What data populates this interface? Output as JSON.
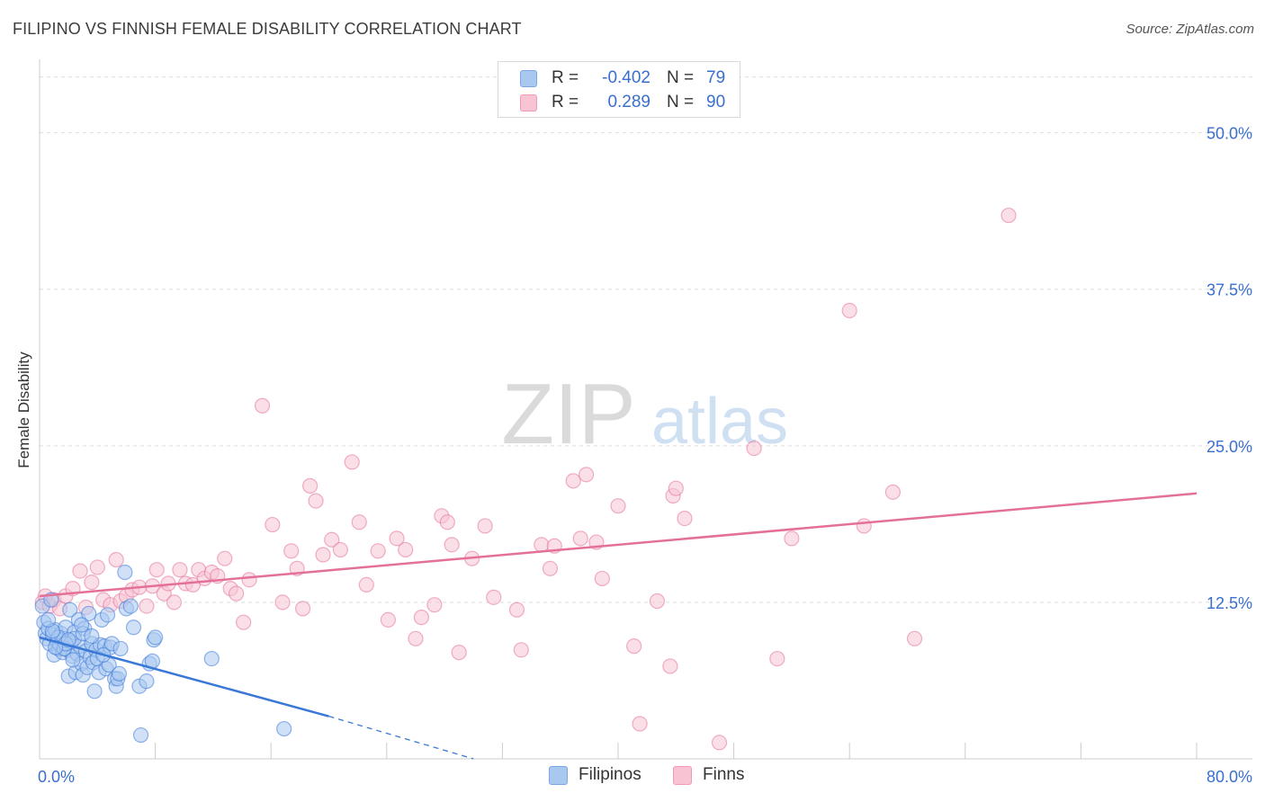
{
  "title": "FILIPINO VS FINNISH FEMALE DISABILITY CORRELATION CHART",
  "source": "Source: ZipAtlas.com",
  "watermark": {
    "zip": "ZIP",
    "atlas": "atlas"
  },
  "legend": [
    {
      "swatch_color": "#a9c8f0",
      "swatch_border": "#7aa8e6",
      "r_label": "R =",
      "r_value": "-0.402",
      "n_label": "N =",
      "n_value": "79"
    },
    {
      "swatch_color": "#f8c4d4",
      "swatch_border": "#ef9ab6",
      "r_label": "R =",
      "r_value": "0.289",
      "n_label": "N =",
      "n_value": "90"
    }
  ],
  "bottom_legend": [
    {
      "label": "Filipinos",
      "color": "#a9c8f0",
      "border": "#7aa8e6"
    },
    {
      "label": "Finns",
      "color": "#f8c4d4",
      "border": "#ef9ab6"
    }
  ],
  "chart_data": {
    "type": "scatter",
    "title": "FILIPINO VS FINNISH FEMALE DISABILITY CORRELATION CHART",
    "xlabel": "",
    "ylabel": "Female Disability",
    "xlim": [
      0,
      80
    ],
    "ylim": [
      0,
      50
    ],
    "x_tick_labels": [
      "0.0%",
      "80.0%"
    ],
    "y_ticks": [
      12.5,
      25.0,
      37.5,
      50.0
    ],
    "y_tick_labels": [
      "12.5%",
      "25.0%",
      "37.5%",
      "50.0%"
    ],
    "grid": "horizontal dashed",
    "legend_position": "top-center",
    "series": [
      {
        "name": "Filipinos",
        "color": "#3a78d8",
        "fill": "#a9c8f0",
        "r": -0.402,
        "n": 79,
        "trend": {
          "x": [
            0.0,
            20.0
          ],
          "y": [
            9.7,
            3.4
          ],
          "dashed_to": [
            30.0,
            0.0
          ]
        },
        "points": [
          [
            0.2,
            12.2
          ],
          [
            0.3,
            10.9
          ],
          [
            0.4,
            10.0
          ],
          [
            0.5,
            9.6
          ],
          [
            0.6,
            10.4
          ],
          [
            0.7,
            9.2
          ],
          [
            0.8,
            12.7
          ],
          [
            0.9,
            9.9
          ],
          [
            1.0,
            8.3
          ],
          [
            1.1,
            10.3
          ],
          [
            1.2,
            9.4
          ],
          [
            1.3,
            8.8
          ],
          [
            1.4,
            9.1
          ],
          [
            1.5,
            10.0
          ],
          [
            1.6,
            8.5
          ],
          [
            1.7,
            9.6
          ],
          [
            1.8,
            10.5
          ],
          [
            1.9,
            8.7
          ],
          [
            2.0,
            6.6
          ],
          [
            2.1,
            11.9
          ],
          [
            2.2,
            9.3
          ],
          [
            2.3,
            8.2
          ],
          [
            2.4,
            10.1
          ],
          [
            2.5,
            6.9
          ],
          [
            2.6,
            8.4
          ],
          [
            2.7,
            11.1
          ],
          [
            2.8,
            9.0
          ],
          [
            2.9,
            7.6
          ],
          [
            3.0,
            6.7
          ],
          [
            3.1,
            10.4
          ],
          [
            3.2,
            8.6
          ],
          [
            3.3,
            7.3
          ],
          [
            3.4,
            11.6
          ],
          [
            3.5,
            8.1
          ],
          [
            3.6,
            9.2
          ],
          [
            3.7,
            7.7
          ],
          [
            3.8,
            5.4
          ],
          [
            3.9,
            8.7
          ],
          [
            4.0,
            8.0
          ],
          [
            4.1,
            6.9
          ],
          [
            4.2,
            9.1
          ],
          [
            4.3,
            11.1
          ],
          [
            4.5,
            9.0
          ],
          [
            4.6,
            7.2
          ],
          [
            4.7,
            11.5
          ],
          [
            4.9,
            8.9
          ],
          [
            5.0,
            9.2
          ],
          [
            5.2,
            6.4
          ],
          [
            5.3,
            5.8
          ],
          [
            5.4,
            6.4
          ],
          [
            5.6,
            8.8
          ],
          [
            5.9,
            14.9
          ],
          [
            6.0,
            12.0
          ],
          [
            6.3,
            12.2
          ],
          [
            6.5,
            10.5
          ],
          [
            6.9,
            5.8
          ],
          [
            7.0,
            1.9
          ],
          [
            7.4,
            6.2
          ],
          [
            7.6,
            7.6
          ],
          [
            7.8,
            7.8
          ],
          [
            7.9,
            9.5
          ],
          [
            8.0,
            9.7
          ],
          [
            11.9,
            8.0
          ],
          [
            16.9,
            2.4
          ],
          [
            1.3,
            9.7
          ],
          [
            2.4,
            9.6
          ],
          [
            0.9,
            10.2
          ],
          [
            1.7,
            8.8
          ],
          [
            3.0,
            10.0
          ],
          [
            2.3,
            7.9
          ],
          [
            1.8,
            9.2
          ],
          [
            4.8,
            7.5
          ],
          [
            0.6,
            11.1
          ],
          [
            2.9,
            10.7
          ],
          [
            5.5,
            6.8
          ],
          [
            3.6,
            9.8
          ],
          [
            1.1,
            8.9
          ],
          [
            4.4,
            8.3
          ],
          [
            2.0,
            9.5
          ]
        ]
      },
      {
        "name": "Finns",
        "color": "#e4709a",
        "fill": "#f8c4d4",
        "r": 0.289,
        "n": 90,
        "trend": {
          "x": [
            0.0,
            80.0
          ],
          "y": [
            13.0,
            21.2
          ]
        },
        "points": [
          [
            0.2,
            12.5
          ],
          [
            0.4,
            13.0
          ],
          [
            0.7,
            12.2
          ],
          [
            1.0,
            12.7
          ],
          [
            1.4,
            12.0
          ],
          [
            1.8,
            13.0
          ],
          [
            2.3,
            13.6
          ],
          [
            2.8,
            15.0
          ],
          [
            3.2,
            12.1
          ],
          [
            3.6,
            14.1
          ],
          [
            4.0,
            15.3
          ],
          [
            4.4,
            12.7
          ],
          [
            4.9,
            12.3
          ],
          [
            5.3,
            15.9
          ],
          [
            5.6,
            12.6
          ],
          [
            6.0,
            13.0
          ],
          [
            6.4,
            13.5
          ],
          [
            6.9,
            13.7
          ],
          [
            7.4,
            12.2
          ],
          [
            7.8,
            13.8
          ],
          [
            8.1,
            15.1
          ],
          [
            8.6,
            13.2
          ],
          [
            8.9,
            14.0
          ],
          [
            9.3,
            12.5
          ],
          [
            9.7,
            15.1
          ],
          [
            10.1,
            14.0
          ],
          [
            10.6,
            13.9
          ],
          [
            11.0,
            15.1
          ],
          [
            11.4,
            14.4
          ],
          [
            11.9,
            14.9
          ],
          [
            12.3,
            14.6
          ],
          [
            12.8,
            16.0
          ],
          [
            13.2,
            13.6
          ],
          [
            13.6,
            13.2
          ],
          [
            14.1,
            10.9
          ],
          [
            14.5,
            14.3
          ],
          [
            15.4,
            28.2
          ],
          [
            16.1,
            18.7
          ],
          [
            16.8,
            12.5
          ],
          [
            17.4,
            16.6
          ],
          [
            17.8,
            15.2
          ],
          [
            18.2,
            12.0
          ],
          [
            18.7,
            21.8
          ],
          [
            19.1,
            20.6
          ],
          [
            19.6,
            16.3
          ],
          [
            20.2,
            17.5
          ],
          [
            20.8,
            16.7
          ],
          [
            21.6,
            23.7
          ],
          [
            22.1,
            18.9
          ],
          [
            22.6,
            13.9
          ],
          [
            23.4,
            16.6
          ],
          [
            24.1,
            11.1
          ],
          [
            24.7,
            17.6
          ],
          [
            25.3,
            16.7
          ],
          [
            26.0,
            9.6
          ],
          [
            26.4,
            11.3
          ],
          [
            27.3,
            12.3
          ],
          [
            27.8,
            19.4
          ],
          [
            28.2,
            18.9
          ],
          [
            28.5,
            17.1
          ],
          [
            29.0,
            8.5
          ],
          [
            29.9,
            16.0
          ],
          [
            30.8,
            18.6
          ],
          [
            31.4,
            12.9
          ],
          [
            33.0,
            11.9
          ],
          [
            33.3,
            8.7
          ],
          [
            34.7,
            17.1
          ],
          [
            35.3,
            15.2
          ],
          [
            35.6,
            17.0
          ],
          [
            36.9,
            22.2
          ],
          [
            37.4,
            17.6
          ],
          [
            37.8,
            22.7
          ],
          [
            38.5,
            17.3
          ],
          [
            38.9,
            14.4
          ],
          [
            40.0,
            20.2
          ],
          [
            41.1,
            9.0
          ],
          [
            41.5,
            2.8
          ],
          [
            42.7,
            12.6
          ],
          [
            43.6,
            7.4
          ],
          [
            43.8,
            21.0
          ],
          [
            44.0,
            21.6
          ],
          [
            44.6,
            19.2
          ],
          [
            47.0,
            1.3
          ],
          [
            49.4,
            24.8
          ],
          [
            51.0,
            8.0
          ],
          [
            52.0,
            17.6
          ],
          [
            56.0,
            35.8
          ],
          [
            57.0,
            18.6
          ],
          [
            59.0,
            21.3
          ],
          [
            60.5,
            9.6
          ],
          [
            67.0,
            43.4
          ]
        ]
      }
    ]
  }
}
